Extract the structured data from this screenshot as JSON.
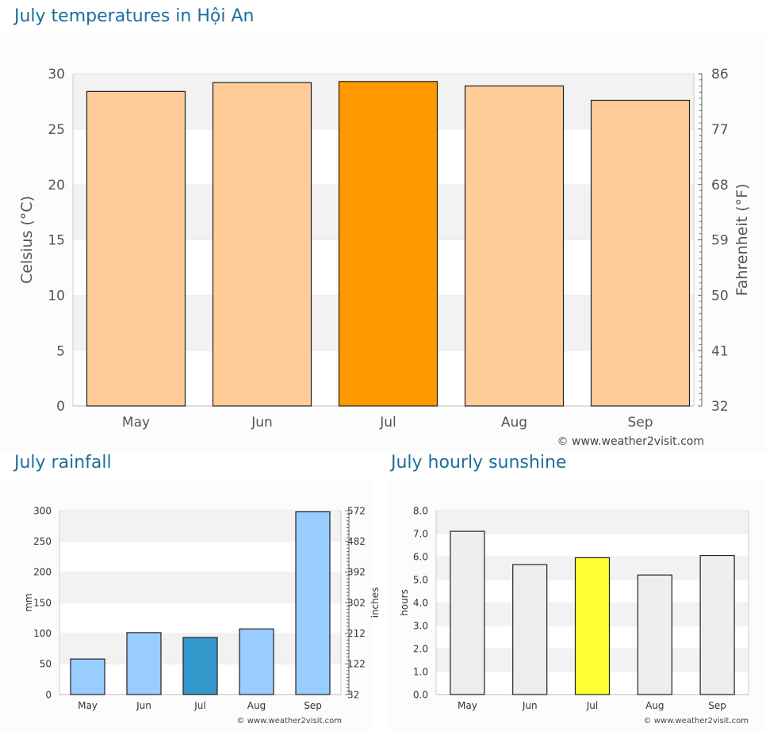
{
  "titles": {
    "temperature": "July temperatures in Hội An",
    "rainfall": "July rainfall",
    "sunshine": "July hourly sunshine"
  },
  "chart_data": [
    {
      "id": "temperature",
      "type": "bar",
      "categories": [
        "May",
        "Jun",
        "Jul",
        "Aug",
        "Sep"
      ],
      "values": [
        28.4,
        29.2,
        29.3,
        28.9,
        27.6
      ],
      "highlight_index": 2,
      "ylabel": "Celsius (°C)",
      "ylim": [
        0,
        30
      ],
      "yticks": [
        0,
        5,
        10,
        15,
        20,
        25,
        30
      ],
      "ylabel_right": "Fahrenheit (°F)",
      "yticks_right": [
        "32",
        "41",
        "50",
        "59",
        "68",
        "77",
        "86"
      ],
      "grid": "alternating bands",
      "bar_color": "#ffcc99",
      "highlight_color": "#ff9900",
      "watermark": "© www.weather2visit.com"
    },
    {
      "id": "rainfall",
      "type": "bar",
      "categories": [
        "May",
        "Jun",
        "Jul",
        "Aug",
        "Sep"
      ],
      "values": [
        58,
        101,
        93,
        107,
        298
      ],
      "highlight_index": 2,
      "ylabel": "mm",
      "ylim": [
        0,
        300
      ],
      "yticks": [
        0,
        50,
        100,
        150,
        200,
        250,
        300
      ],
      "ylabel_right": "inches",
      "yticks_right": [
        "32",
        "122",
        "212",
        "302",
        "392",
        "482",
        "572"
      ],
      "grid": "alternating bands",
      "bar_color": "#99ccff",
      "highlight_color": "#3399cc",
      "watermark": "© www.weather2visit.com"
    },
    {
      "id": "sunshine",
      "type": "bar",
      "categories": [
        "May",
        "Jun",
        "Jul",
        "Aug",
        "Sep"
      ],
      "values": [
        7.1,
        5.65,
        5.95,
        5.2,
        6.05
      ],
      "highlight_index": 2,
      "ylabel": "hours",
      "ylim": [
        0,
        8
      ],
      "yticks": [
        "0.0",
        "1.0",
        "2.0",
        "3.0",
        "4.0",
        "5.0",
        "6.0",
        "7.0",
        "8.0"
      ],
      "grid": "alternating bands",
      "bar_color": "#eeeeee",
      "highlight_color": "#ffff33",
      "watermark": "© www.weather2visit.com"
    }
  ]
}
